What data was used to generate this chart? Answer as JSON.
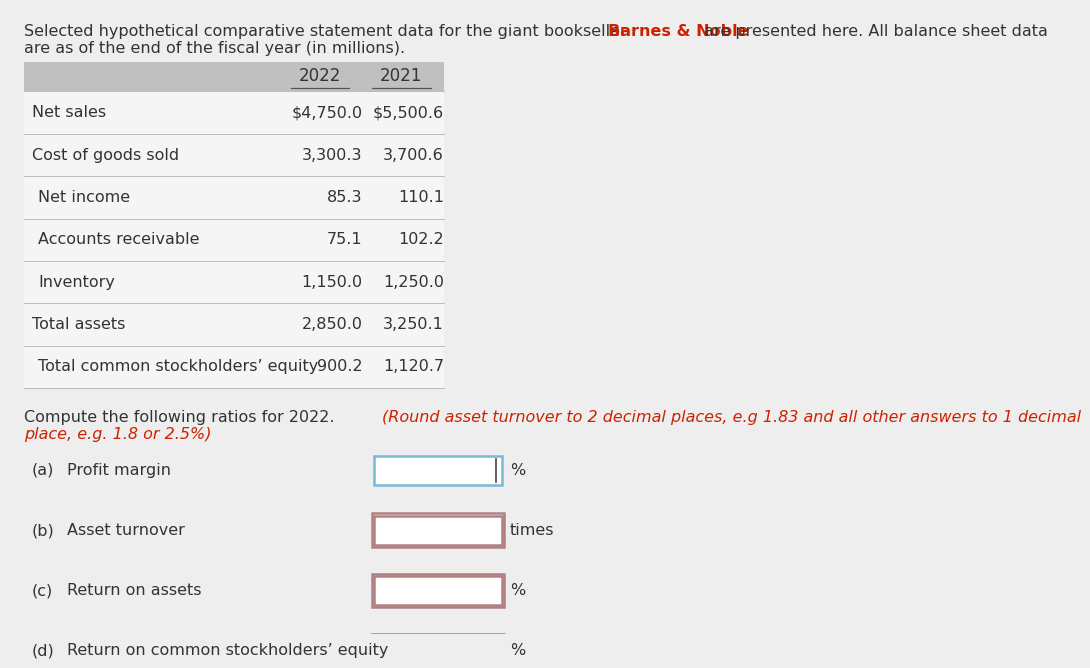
{
  "bg_color": "#eeeeee",
  "white_bg": "#ffffff",
  "header_prefix": "Selected hypothetical comparative statement data for the giant bookseller ",
  "bn_text": "Barnes & Noble",
  "header_suffix": " are presented here. All balance sheet data",
  "header_line2": "are as of the end of the fiscal year (in millions).",
  "bn_color": "#cc2200",
  "table_header_bg": "#c0c0c0",
  "table_row_bg": "#f8f8f8",
  "years": [
    "2022",
    "2021"
  ],
  "rows": [
    {
      "label": "Net sales",
      "v2022": "$4,750.0",
      "v2021": "$5,500.6",
      "indent": false
    },
    {
      "label": "Cost of goods sold",
      "v2022": "3,300.3",
      "v2021": "3,700.6",
      "indent": false
    },
    {
      "label": "Net income",
      "v2022": "85.3",
      "v2021": "110.1",
      "indent": true
    },
    {
      "label": "Accounts receivable",
      "v2022": "75.1",
      "v2021": "102.2",
      "indent": true
    },
    {
      "label": "Inventory",
      "v2022": "1,150.0",
      "v2021": "1,250.0",
      "indent": true
    },
    {
      "label": "Total assets",
      "v2022": "2,850.0",
      "v2021": "3,250.1",
      "indent": false
    },
    {
      "label": "Total common stockholders’ equity",
      "v2022": "900.2",
      "v2021": "1,120.7",
      "indent": true
    }
  ],
  "compute_prefix": "Compute the following ratios for 2022. ",
  "compute_italic": "(Round asset turnover to 2 decimal places, e.g 1.83 and all other answers to 1 decimal",
  "compute_line2": "place, e.g. 1.8 or 2.5%)",
  "ratios": [
    {
      "label": "(a)",
      "name": "Profit margin",
      "unit": "%",
      "box_style": "blue"
    },
    {
      "label": "(b)",
      "name": "Asset turnover",
      "unit": "times",
      "box_style": "red"
    },
    {
      "label": "(c)",
      "name": "Return on assets",
      "unit": "%",
      "box_style": "red"
    },
    {
      "label": "(d)",
      "name": "Return on common stockholders’ equity",
      "unit": "%",
      "box_style": "red"
    }
  ],
  "text_color": "#333333",
  "font_size": 11.5,
  "box_color_blue": "#7ab8d4",
  "box_color_red": "#b08080",
  "divider_color": "#bbbbbb"
}
